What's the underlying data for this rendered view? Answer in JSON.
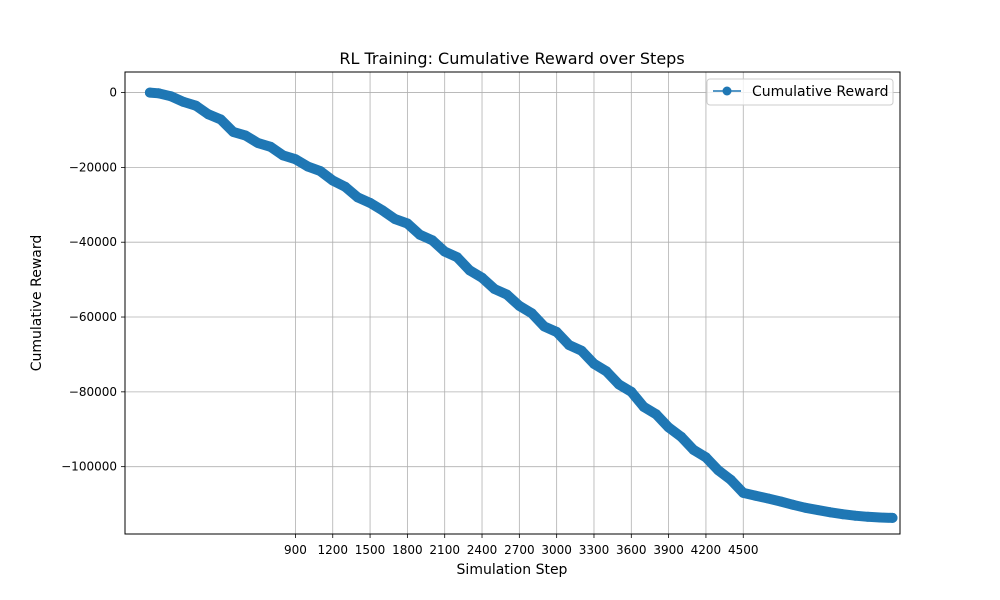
{
  "chart_data": {
    "type": "line",
    "title": "RL Training: Cumulative Reward over Steps",
    "xlabel": "Simulation Step",
    "ylabel": "Cumulative Reward",
    "xlim": [
      -470,
      5760
    ],
    "ylim": [
      -118000,
      5500
    ],
    "xticks": [
      900,
      1200,
      1500,
      1800,
      2100,
      2400,
      2700,
      3000,
      3300,
      3600,
      3900,
      4200,
      4500
    ],
    "xtick_labels": [
      "900",
      "1200",
      "1500",
      "1800",
      "2100",
      "2400",
      "2700",
      "3000",
      "3300",
      "3600",
      "3900",
      "4200",
      "4500"
    ],
    "yticks": [
      0,
      -20000,
      -40000,
      -60000,
      -80000,
      -100000
    ],
    "ytick_labels": [
      "0",
      "−20000",
      "−40000",
      "−60000",
      "−80000",
      "−100000"
    ],
    "grid": true,
    "legend": {
      "position": "top-right",
      "entries": [
        "Cumulative Reward"
      ]
    },
    "series": [
      {
        "name": "Cumulative Reward",
        "color": "#1f77b4",
        "marker": "circle",
        "x": [
          -270,
          -200,
          -100,
          0,
          100,
          200,
          300,
          400,
          500,
          600,
          700,
          800,
          900,
          1000,
          1100,
          1200,
          1300,
          1400,
          1500,
          1600,
          1700,
          1800,
          1900,
          2000,
          2100,
          2200,
          2300,
          2400,
          2500,
          2600,
          2700,
          2800,
          2900,
          3000,
          3100,
          3200,
          3300,
          3400,
          3500,
          3600,
          3700,
          3800,
          3900,
          4000,
          4100,
          4200,
          4300,
          4400,
          4500,
          4600,
          4700,
          4800,
          4900,
          5000,
          5100,
          5200,
          5300,
          5400,
          5500,
          5600,
          5700
        ],
        "y": [
          0,
          -200,
          -1000,
          -2500,
          -3500,
          -5800,
          -7200,
          -10500,
          -11500,
          -13500,
          -14500,
          -16800,
          -17800,
          -19800,
          -21000,
          -23500,
          -25200,
          -28000,
          -29500,
          -31500,
          -33800,
          -35000,
          -38000,
          -39500,
          -42500,
          -44000,
          -47500,
          -49500,
          -52500,
          -54000,
          -57000,
          -59000,
          -62500,
          -64000,
          -67500,
          -69000,
          -72500,
          -74500,
          -78000,
          -80000,
          -84000,
          -86000,
          -89500,
          -92000,
          -95500,
          -97500,
          -101000,
          -103500,
          -107000,
          -107800,
          -108500,
          -109300,
          -110200,
          -111000,
          -111600,
          -112200,
          -112700,
          -113100,
          -113400,
          -113600,
          -113700
        ]
      }
    ]
  }
}
